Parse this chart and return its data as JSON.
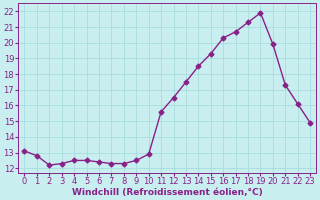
{
  "x": [
    0,
    1,
    2,
    3,
    4,
    5,
    6,
    7,
    8,
    9,
    10,
    11,
    12,
    13,
    14,
    15,
    16,
    17,
    18,
    19,
    20,
    21,
    22,
    23
  ],
  "y": [
    13.1,
    12.8,
    12.2,
    12.3,
    12.5,
    12.5,
    12.4,
    12.3,
    12.3,
    12.5,
    12.9,
    15.6,
    16.5,
    17.5,
    18.5,
    19.3,
    20.3,
    20.7,
    21.3,
    21.9,
    19.9,
    17.3,
    16.1,
    14.9
  ],
  "line_color": "#882288",
  "marker": "D",
  "markersize": 2.5,
  "linewidth": 1.0,
  "bg_color": "#c8eef0",
  "grid_color": "#aadddd",
  "xlabel": "Windchill (Refroidissement éolien,°C)",
  "ylabel_ticks": [
    12,
    13,
    14,
    15,
    16,
    17,
    18,
    19,
    20,
    21,
    22
  ],
  "ylim": [
    11.7,
    22.5
  ],
  "xlim": [
    -0.5,
    23.5
  ],
  "xticks": [
    0,
    1,
    2,
    3,
    4,
    5,
    6,
    7,
    8,
    9,
    10,
    11,
    12,
    13,
    14,
    15,
    16,
    17,
    18,
    19,
    20,
    21,
    22,
    23
  ],
  "tick_fontsize": 6.0,
  "xlabel_fontsize": 6.5,
  "tick_color": "#882288",
  "label_color": "#882288"
}
